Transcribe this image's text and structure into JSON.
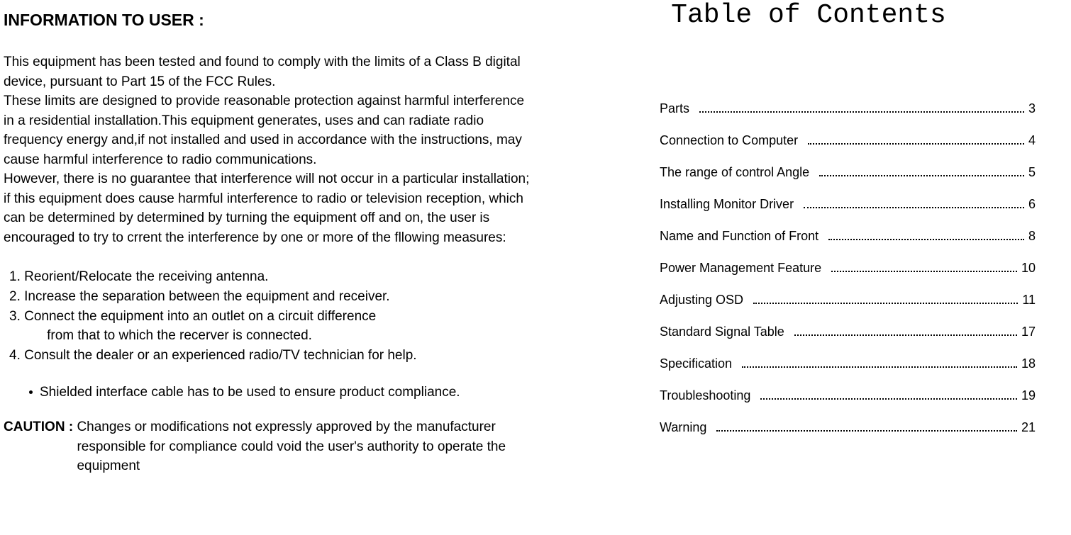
{
  "left": {
    "heading": "INFORMATION TO USER :",
    "paragraph": " This equipment has been tested and found to comply with the limits of a Class B digital device, pursuant to Part 15 of the FCC Rules.\nThese limits are designed to provide reasonable protection against harmful interference in a residential installation.This equipment generates, uses and can radiate radio frequency energy and,if not installed and used in accordance with the instructions, may cause harmful interference to radio communications.\nHowever, there is no guarantee that interference will not occur in a particular installation; if this equipment does cause harmful interference to radio or television reception, which can be determined by determined by turning the equipment off and on, the user is encouraged to try to crrent the interference by one or more of the fllowing measures:",
    "measures": [
      "1. Reorient/Relocate the receiving antenna.",
      "2. Increase the separation between the equipment and receiver.",
      "3. Connect the equipment into an outlet on a circuit difference",
      "    from that to which the recerver is connected.",
      "4. Consult the dealer or an experienced radio/TV technician for help."
    ],
    "bullet": "Shielded interface cable has to be used to ensure product compliance.",
    "caution_label": "CAUTION : ",
    "caution_text": "Changes or modifications not expressly approved by the manufacturer responsible for compliance could void the user's authority to operate the equipment"
  },
  "right": {
    "title": "Table of Contents",
    "items": [
      {
        "label": "Parts",
        "page": "3"
      },
      {
        "label": "Connection to Computer",
        "page": "4"
      },
      {
        "label": "The range of control  Angle",
        "page": "5"
      },
      {
        "label": "Installing Monitor Driver",
        "page": "6"
      },
      {
        "label": "Name and Function of Front",
        "page": "8"
      },
      {
        "label": "Power Management Feature",
        "page": "10"
      },
      {
        "label": "Adjusting OSD",
        "page": "11"
      },
      {
        "label": "Standard Signal Table",
        "page": "17"
      },
      {
        "label": "Specification",
        "page": "18"
      },
      {
        "label": "Troubleshooting",
        "page": "19"
      },
      {
        "label": "Warning",
        "page": "21"
      }
    ]
  },
  "style": {
    "text_color": "#000000",
    "background_color": "#ffffff",
    "body_fontsize": 19,
    "heading_fontsize": 23,
    "toc_title_fontsize": 38,
    "toc_item_fontsize": 18,
    "toc_title_family": "Courier New"
  }
}
